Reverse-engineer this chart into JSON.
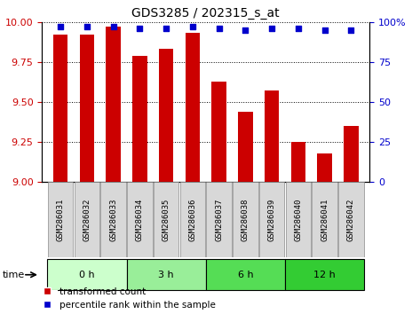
{
  "title": "GDS3285 / 202315_s_at",
  "samples": [
    "GSM286031",
    "GSM286032",
    "GSM286033",
    "GSM286034",
    "GSM286035",
    "GSM286036",
    "GSM286037",
    "GSM286038",
    "GSM286039",
    "GSM286040",
    "GSM286041",
    "GSM286042"
  ],
  "bar_values": [
    9.92,
    9.92,
    9.97,
    9.79,
    9.83,
    9.93,
    9.63,
    9.44,
    9.57,
    9.25,
    9.18,
    9.35
  ],
  "percentile_values": [
    97,
    97,
    97,
    96,
    96,
    97,
    96,
    95,
    96,
    96,
    95,
    95
  ],
  "bar_color": "#cc0000",
  "percentile_color": "#0000cc",
  "ylim_left": [
    9.0,
    10.0
  ],
  "ylim_right": [
    0,
    100
  ],
  "yticks_left": [
    9.0,
    9.25,
    9.5,
    9.75,
    10.0
  ],
  "yticks_right": [
    0,
    25,
    50,
    75,
    100
  ],
  "groups": [
    {
      "label": "0 h",
      "start": 0,
      "end": 3,
      "color": "#ccffcc"
    },
    {
      "label": "3 h",
      "start": 3,
      "end": 6,
      "color": "#99ee99"
    },
    {
      "label": "6 h",
      "start": 6,
      "end": 9,
      "color": "#55dd55"
    },
    {
      "label": "12 h",
      "start": 9,
      "end": 12,
      "color": "#33cc33"
    }
  ],
  "time_label": "time",
  "legend_bar_label": "transformed count",
  "legend_pct_label": "percentile rank within the sample",
  "tick_label_color_left": "#cc0000",
  "tick_label_color_right": "#0000cc",
  "bar_width": 0.55
}
